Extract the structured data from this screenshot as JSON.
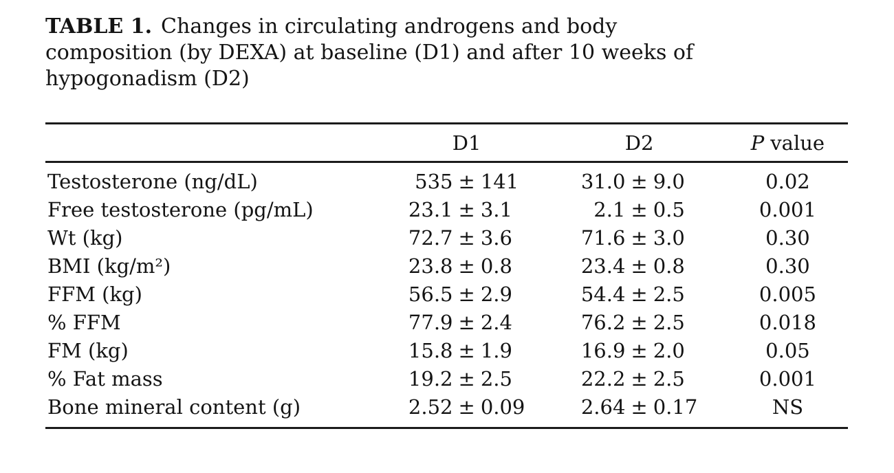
{
  "style": {
    "background": "#ffffff",
    "ink": "#141414",
    "rule_color": "#1b1b1b"
  },
  "caption": {
    "bold_label": "TABLE 1.",
    "line1_rest": "Changes in circulating androgens and body",
    "line2": "composition (by DEXA) at baseline (D1) and after 10 weeks of",
    "line3": "hypogonadism (D2)",
    "full_text": "TABLE 1. Changes in circulating androgens and body composition (by DEXA) at baseline (D1) and after 10 weeks of hypogonadism (D2)"
  },
  "symbols": {
    "plus_minus": "±"
  },
  "table": {
    "header": {
      "label_col": "",
      "d1": "D1",
      "d2": "D2",
      "p_prefix": "P",
      "p_suffix": "value"
    },
    "rows": [
      {
        "label": "Testosterone (ng/dL)",
        "d1_mean": "535",
        "d1_sd": "141",
        "d2_mean": "31.0",
        "d2_sd": "9.0",
        "p": "0.02"
      },
      {
        "label": "Free testosterone (pg/mL)",
        "d1_mean": "23.1",
        "d1_sd": "3.1",
        "d2_mean": "2.1",
        "d2_sd": "0.5",
        "p": "0.001"
      },
      {
        "label": "Wt (kg)",
        "d1_mean": "72.7",
        "d1_sd": "3.6",
        "d2_mean": "71.6",
        "d2_sd": "3.0",
        "p": "0.30"
      },
      {
        "label": "BMI (kg/m²)",
        "d1_mean": "23.8",
        "d1_sd": "0.8",
        "d2_mean": "23.4",
        "d2_sd": "0.8",
        "p": "0.30"
      },
      {
        "label": "FFM (kg)",
        "d1_mean": "56.5",
        "d1_sd": "2.9",
        "d2_mean": "54.4",
        "d2_sd": "2.5",
        "p": "0.005"
      },
      {
        "label": "% FFM",
        "d1_mean": "77.9",
        "d1_sd": "2.4",
        "d2_mean": "76.2",
        "d2_sd": "2.5",
        "p": "0.018"
      },
      {
        "label": "FM (kg)",
        "d1_mean": "15.8",
        "d1_sd": "1.9",
        "d2_mean": "16.9",
        "d2_sd": "2.0",
        "p": "0.05"
      },
      {
        "label": "% Fat mass",
        "d1_mean": "19.2",
        "d1_sd": "2.5",
        "d2_mean": "22.2",
        "d2_sd": "2.5",
        "p": "0.001"
      },
      {
        "label": "Bone mineral content (g)",
        "d1_mean": "2.52",
        "d1_sd": "0.09",
        "d2_mean": "2.64",
        "d2_sd": "0.17",
        "p": "NS"
      }
    ]
  }
}
